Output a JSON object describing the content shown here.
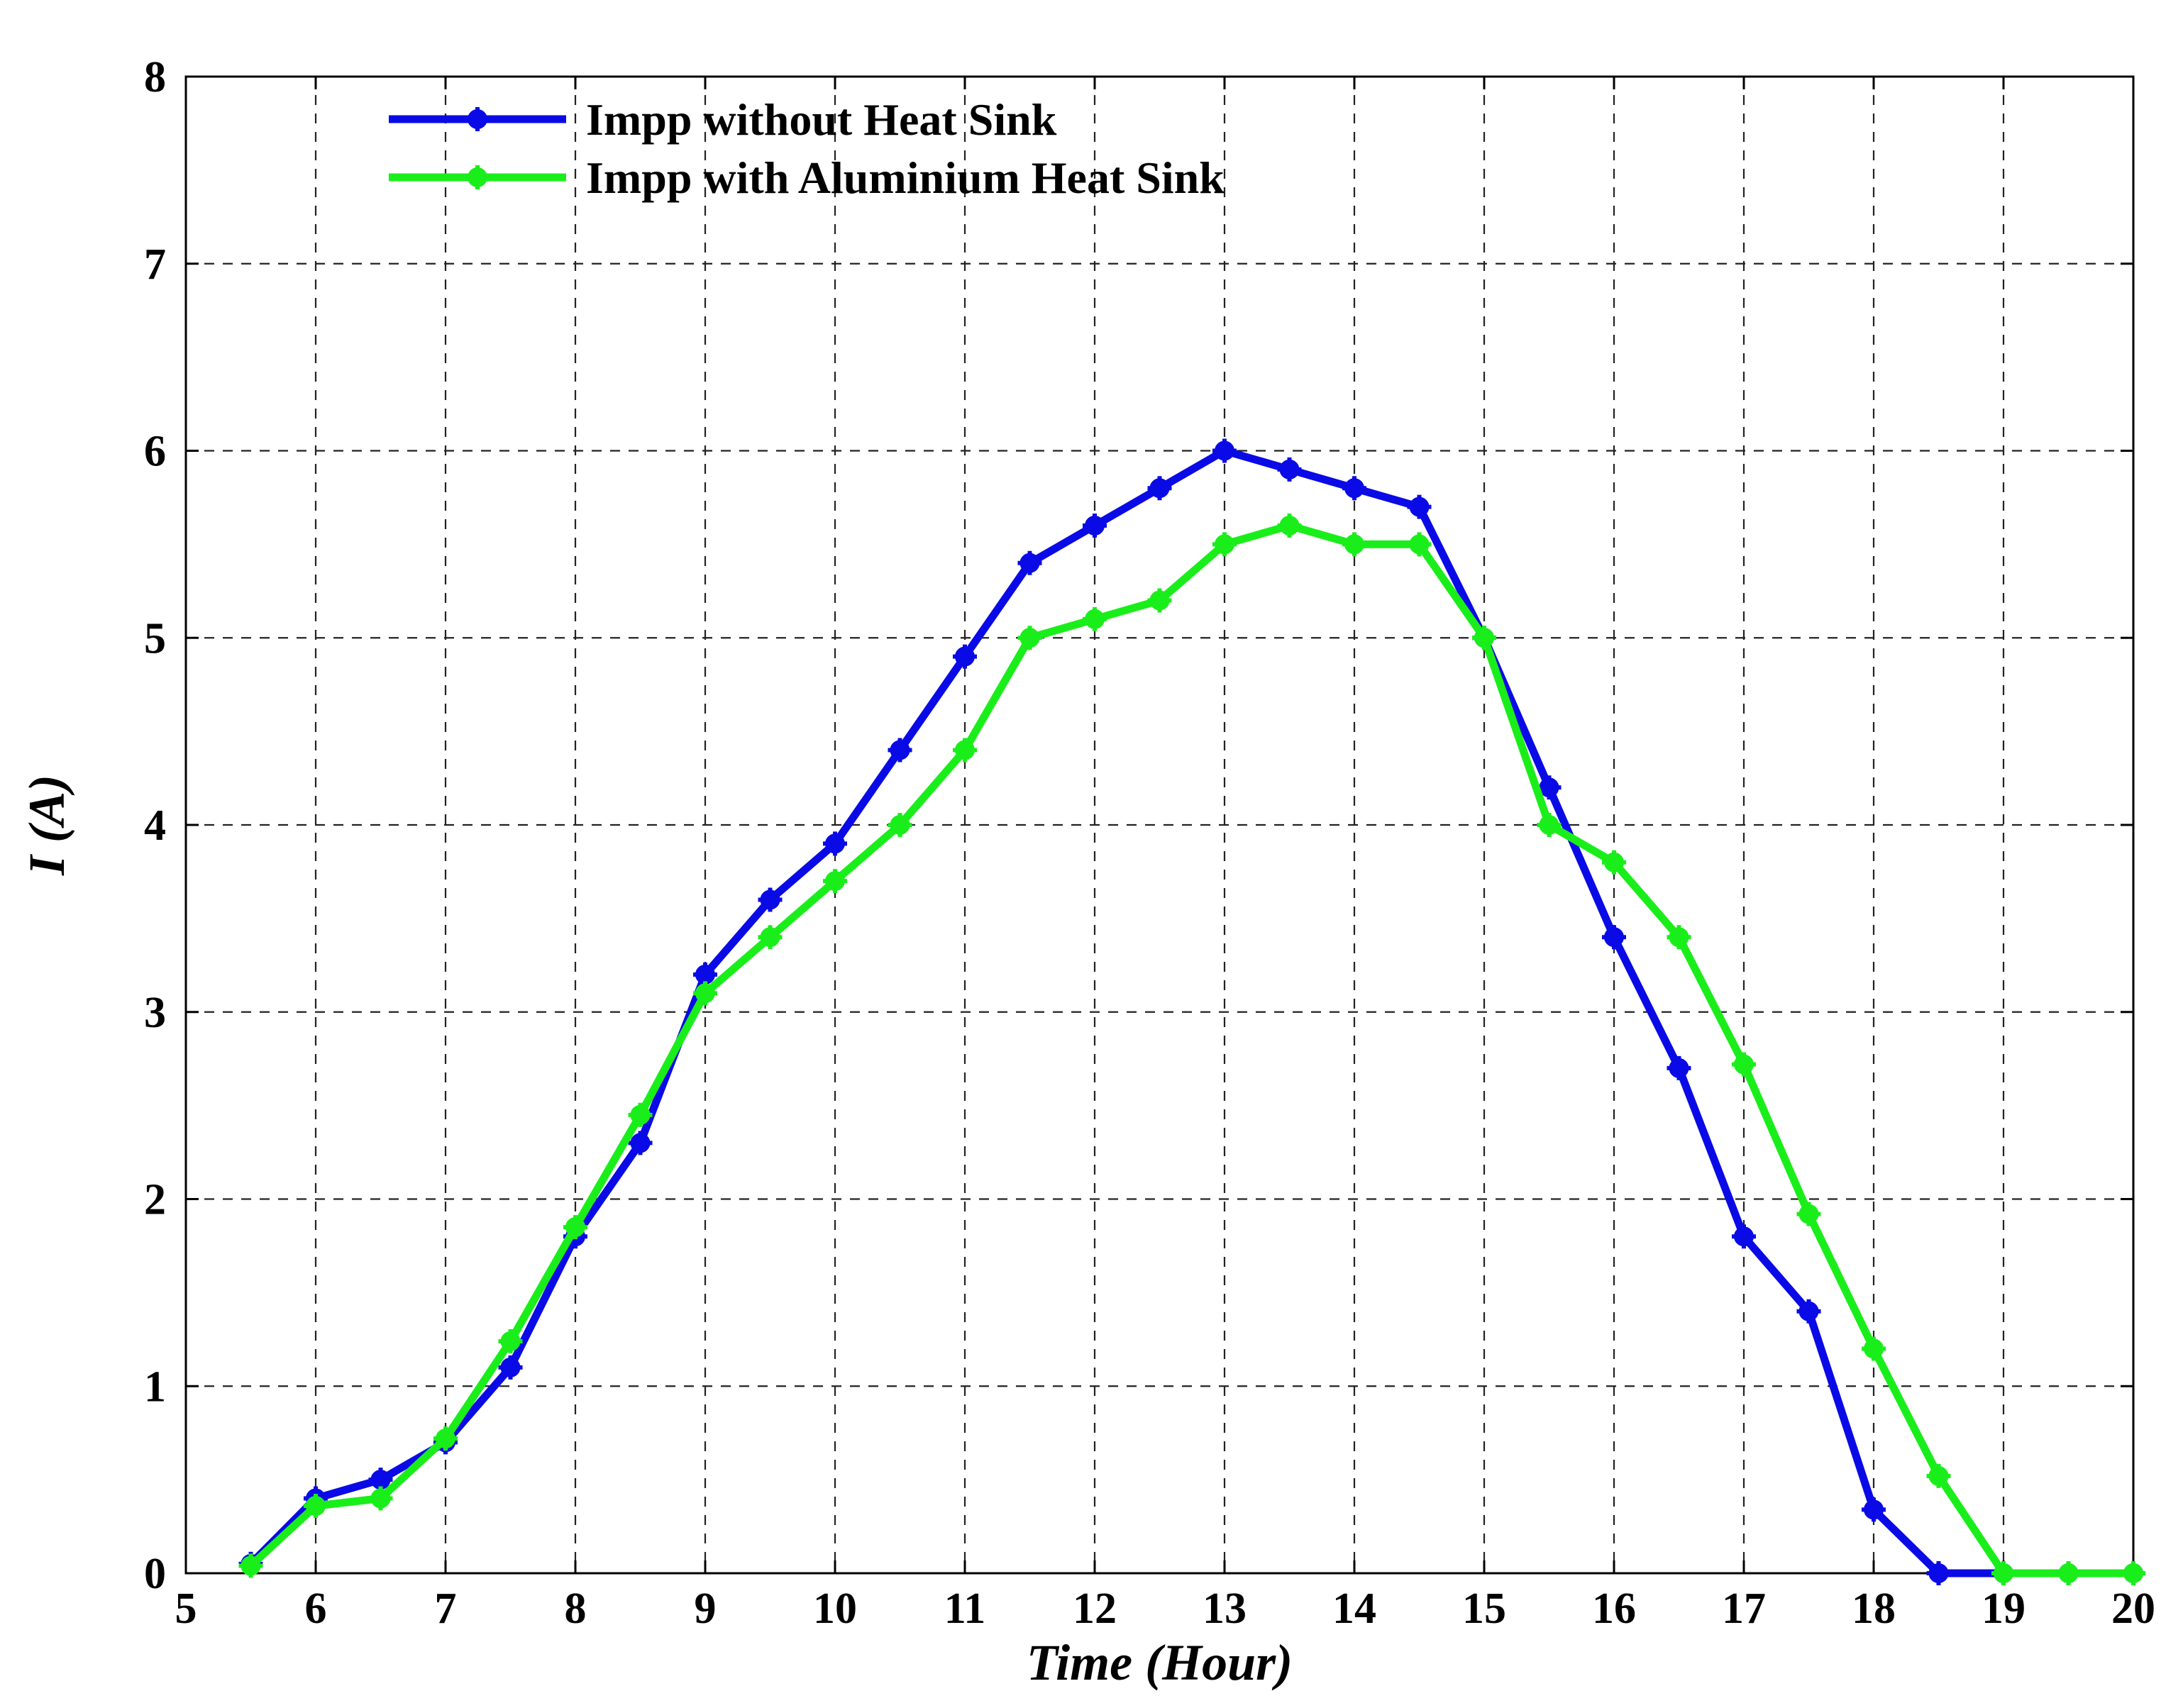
{
  "chart_data": {
    "type": "line",
    "title": "",
    "xlabel": "Time (Hour)",
    "ylabel": "I (A)",
    "xlim": [
      5,
      20
    ],
    "ylim": [
      0,
      8
    ],
    "xticks": [
      5,
      6,
      7,
      8,
      9,
      10,
      11,
      12,
      13,
      14,
      15,
      16,
      17,
      18,
      19,
      20
    ],
    "yticks": [
      0,
      1,
      2,
      3,
      4,
      5,
      6,
      7,
      8
    ],
    "grid": true,
    "legend_position": "top-left",
    "series": [
      {
        "name": "Impp without Heat Sink",
        "color": "#0a0ae6",
        "marker": "plus-dot",
        "x": [
          5.5,
          6,
          6.5,
          7,
          7.5,
          8,
          8.5,
          9,
          9.5,
          10,
          10.5,
          11,
          11.5,
          12,
          12.5,
          13,
          13.5,
          14,
          14.5,
          15,
          15.5,
          16,
          16.5,
          17,
          17.5,
          18,
          18.5,
          19,
          19.5,
          20
        ],
        "y": [
          0.05,
          0.4,
          0.5,
          0.7,
          1.1,
          1.8,
          2.3,
          3.2,
          3.6,
          3.9,
          4.4,
          4.9,
          5.4,
          5.6,
          5.8,
          6.0,
          5.9,
          5.8,
          5.7,
          5.0,
          4.2,
          3.4,
          2.7,
          1.8,
          1.4,
          0.34,
          0.0,
          0.0,
          0.0,
          0.0
        ]
      },
      {
        "name": "Impp with Aluminium Heat Sink",
        "color": "#1aee1a",
        "marker": "plus-dot",
        "x": [
          5.5,
          6,
          6.5,
          7,
          7.5,
          8,
          8.5,
          9,
          9.5,
          10,
          10.5,
          11,
          11.5,
          12,
          12.5,
          13,
          13.5,
          14,
          14.5,
          15,
          15.5,
          16,
          16.5,
          17,
          17.5,
          18,
          18.5,
          19,
          19.5,
          20
        ],
        "y": [
          0.04,
          0.36,
          0.4,
          0.72,
          1.24,
          1.85,
          2.45,
          3.1,
          3.4,
          3.7,
          4.0,
          4.4,
          5.0,
          5.1,
          5.2,
          5.5,
          5.6,
          5.5,
          5.5,
          5.0,
          4.0,
          3.8,
          3.4,
          2.72,
          1.92,
          1.2,
          0.52,
          0.0,
          0.0,
          0.0
        ]
      }
    ]
  }
}
